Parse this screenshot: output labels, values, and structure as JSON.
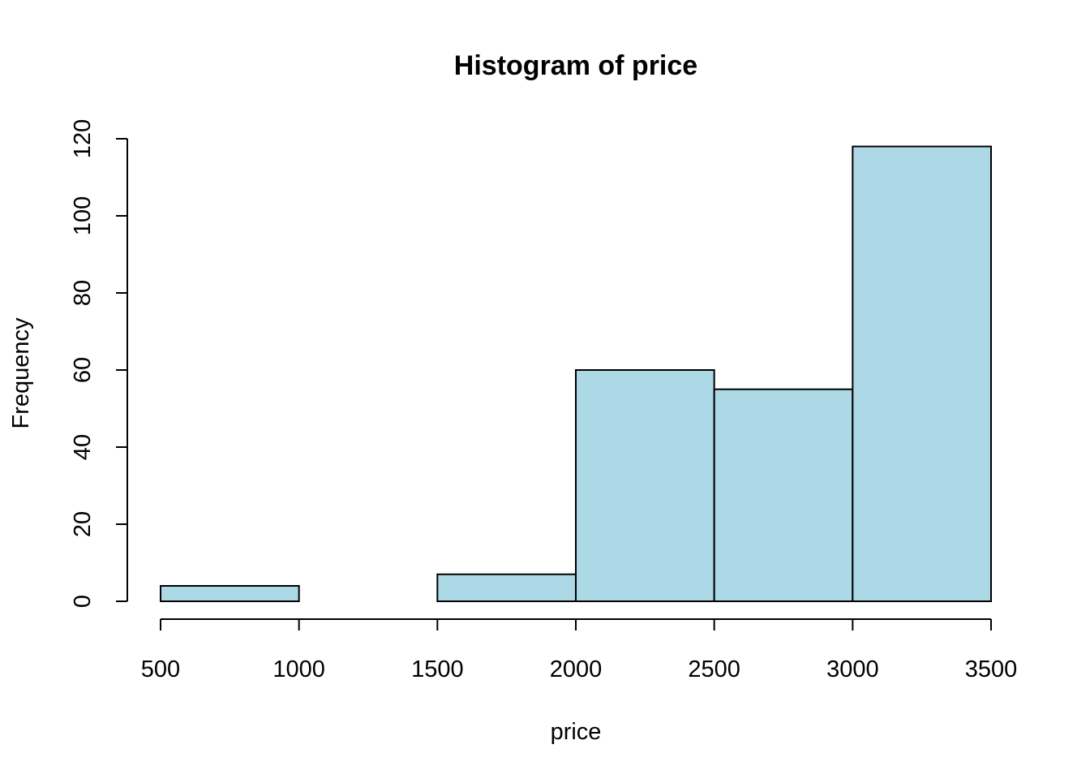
{
  "chart_data": {
    "type": "bar",
    "subtype": "histogram",
    "title": "Histogram of price",
    "xlabel": "price",
    "ylabel": "Frequency",
    "bin_edges": [
      500,
      1000,
      1500,
      2000,
      2500,
      3000,
      3500
    ],
    "values": [
      4,
      0,
      7,
      60,
      55,
      118
    ],
    "x_ticks": [
      500,
      1000,
      1500,
      2000,
      2500,
      3000,
      3500
    ],
    "y_ticks": [
      0,
      20,
      40,
      60,
      80,
      100,
      120
    ],
    "xlim": [
      500,
      3500
    ],
    "ylim": [
      0,
      120
    ],
    "grid": false,
    "legend": "none",
    "bar_color": "#add8e6",
    "edge_color": "#000000"
  }
}
